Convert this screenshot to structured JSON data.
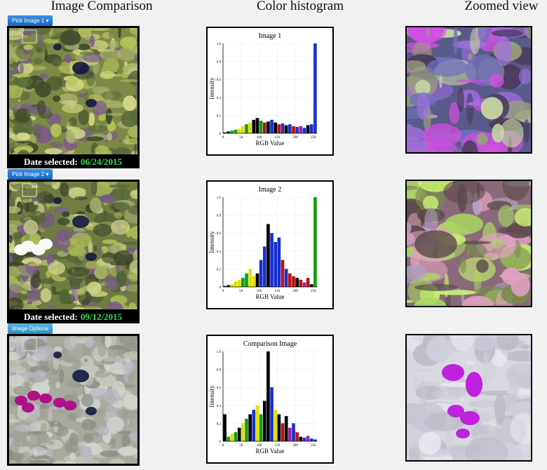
{
  "headers": [
    "Image Comparison",
    "Color histogram",
    "Zoomed view"
  ],
  "rows": [
    {
      "button": "Pick Image 1 ▾",
      "date_label": "Date selected:",
      "date": "06/24/2015"
    },
    {
      "button": "Pick Image 2 ▾",
      "date_label": "Date selected:",
      "date": "09/12/2015"
    },
    {
      "button": "Image Options"
    }
  ],
  "histograms": [
    {
      "title": "Image 1",
      "x_label": "RGB Value",
      "y_label": "Intensity",
      "xlim": [
        0,
        260
      ],
      "ylim": [
        0,
        1
      ],
      "xticks": [
        0,
        50,
        100,
        150,
        200,
        250
      ],
      "yticks": [
        0,
        0.2,
        0.4,
        0.6,
        0.8,
        {
          "value": 1,
          "label": "1.0"
        }
      ],
      "x": [
        5,
        15,
        25,
        35,
        45,
        55,
        65,
        75,
        85,
        95,
        105,
        115,
        125,
        135,
        145,
        155,
        165,
        175,
        185,
        195,
        205,
        215,
        225,
        235,
        245,
        255
      ],
      "values": [
        0.01,
        0.02,
        0.03,
        0.04,
        0.05,
        0.08,
        0.1,
        0.12,
        0.15,
        0.17,
        0.14,
        0.12,
        0.13,
        0.15,
        0.12,
        0.1,
        0.11,
        0.09,
        0.1,
        0.08,
        0.07,
        0.08,
        0.06,
        0.09,
        0.1,
        1.0
      ],
      "colors": [
        "#000000",
        "#000000",
        "#10a010",
        "#10a010",
        "#e0e000",
        "#e0e000",
        "#10a010",
        "#e0e000",
        "#000000",
        "#000000",
        "#10a010",
        "#c01010",
        "#000000",
        "#1830d0",
        "#000000",
        "#c01010",
        "#1830d0",
        "#000000",
        "#1830d0",
        "#c01010",
        "#1830d0",
        "#a020a0",
        "#1830d0",
        "#000000",
        "#1830d0",
        "#1830d0"
      ]
    },
    {
      "title": "Image 2",
      "x_label": "RGB Value",
      "y_label": "Intensity",
      "xlim": [
        0,
        260
      ],
      "ylim": [
        0,
        1
      ],
      "xticks": [
        0,
        50,
        100,
        150,
        200,
        250
      ],
      "yticks": [
        0,
        0.2,
        0.4,
        0.6,
        0.8,
        {
          "value": 1,
          "label": "1.0"
        }
      ],
      "x": [
        5,
        15,
        25,
        35,
        45,
        55,
        65,
        75,
        85,
        95,
        105,
        115,
        125,
        135,
        145,
        155,
        165,
        175,
        185,
        195,
        205,
        215,
        225,
        235,
        245,
        255
      ],
      "values": [
        0.01,
        0.02,
        0.03,
        0.06,
        0.08,
        0.1,
        0.15,
        0.2,
        0.12,
        0.15,
        0.3,
        0.45,
        0.7,
        0.6,
        0.5,
        0.55,
        0.3,
        0.2,
        0.15,
        0.12,
        0.1,
        0.08,
        0.05,
        0.1,
        0.03,
        1.0
      ],
      "colors": [
        "#000000",
        "#000000",
        "#e0e000",
        "#e0e000",
        "#e0e000",
        "#10a010",
        "#10a010",
        "#e0e000",
        "#e0e000",
        "#000000",
        "#1830d0",
        "#1830d0",
        "#000000",
        "#1830d0",
        "#1830d0",
        "#1830d0",
        "#c01010",
        "#1830d0",
        "#c01010",
        "#c01010",
        "#000000",
        "#c01010",
        "#a020a0",
        "#c01010",
        "#000000",
        "#10a010"
      ]
    },
    {
      "title": "Comparison Image",
      "x_label": "RGB Value",
      "y_label": "Intensity",
      "xlim": [
        0,
        260
      ],
      "ylim": [
        0,
        1
      ],
      "xticks": [
        0,
        50,
        100,
        150,
        200,
        250
      ],
      "yticks": [
        0,
        0.2,
        0.4,
        0.6,
        0.8,
        {
          "value": 1,
          "label": "1.0"
        }
      ],
      "x": [
        5,
        15,
        25,
        35,
        45,
        55,
        65,
        75,
        85,
        95,
        105,
        115,
        125,
        135,
        145,
        155,
        165,
        175,
        185,
        195,
        205,
        215,
        225,
        235,
        245,
        255
      ],
      "values": [
        0.3,
        0.05,
        0.08,
        0.1,
        0.15,
        0.2,
        0.25,
        0.3,
        0.35,
        0.4,
        0.3,
        0.45,
        1.0,
        0.6,
        0.35,
        0.3,
        0.2,
        0.28,
        0.15,
        0.2,
        0.1,
        0.05,
        0.04,
        0.06,
        0.03,
        0.02
      ],
      "colors": [
        "#000000",
        "#10a010",
        "#e0e000",
        "#10a010",
        "#000000",
        "#e0e000",
        "#10a010",
        "#000000",
        "#1830d0",
        "#e0e000",
        "#10a010",
        "#000000",
        "#000000",
        "#1830d0",
        "#e0e000",
        "#000000",
        "#c01010",
        "#000000",
        "#a020a0",
        "#1830d0",
        "#c01010",
        "#000000",
        "#1830d0",
        "#a020a0",
        "#1830d0",
        "#1830d0"
      ]
    }
  ]
}
